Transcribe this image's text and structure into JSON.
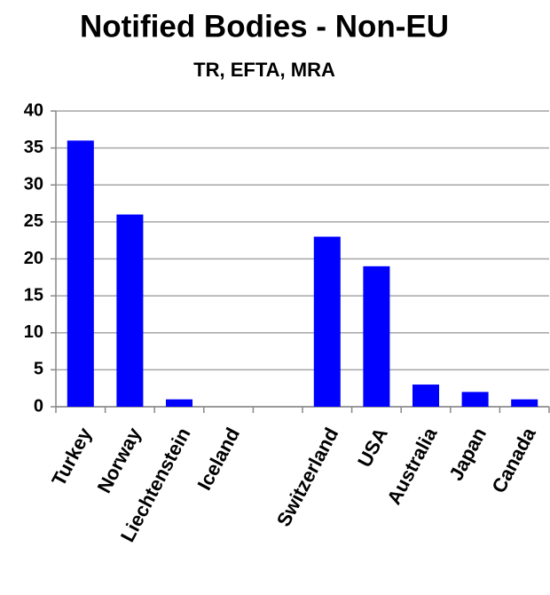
{
  "chart_data": {
    "type": "bar",
    "title": "Notified Bodies - Non-EU",
    "subtitle": "TR, EFTA, MRA",
    "categories": [
      "Turkey",
      "Norway",
      "Liechtenstein",
      "Iceland",
      null,
      "Switzerland",
      "USA",
      "Australia",
      "Japan",
      "Canada"
    ],
    "values": [
      36,
      26,
      1,
      0,
      null,
      23,
      19,
      3,
      2,
      1
    ],
    "color": "#0000ff",
    "ylim": [
      0,
      40
    ],
    "yticks": [
      0,
      5,
      10,
      15,
      20,
      25,
      30,
      35,
      40
    ],
    "grid": true
  }
}
